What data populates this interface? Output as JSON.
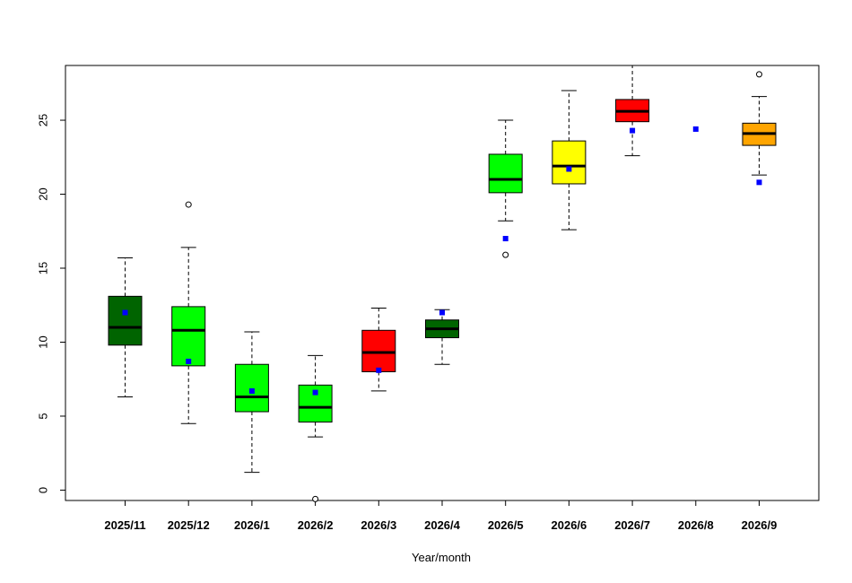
{
  "chart_data": {
    "type": "boxplot",
    "xlabel": "Year/month",
    "ylabel": "",
    "ylim": [
      -0.7,
      28.7
    ],
    "y_ticks": [
      0,
      5,
      10,
      15,
      20,
      25
    ],
    "grid": false,
    "categories": [
      "2025/11",
      "2025/12",
      "2026/1",
      "2026/2",
      "2026/3",
      "2026/4",
      "2026/5",
      "2026/6",
      "2026/7",
      "2026/8",
      "2026/9"
    ],
    "boxes": [
      {
        "category": "2025/11",
        "lower_whisker": 6.3,
        "q1": 9.8,
        "median": 11.0,
        "q3": 13.1,
        "upper_whisker": 15.7,
        "outliers": [],
        "mean": 12.0,
        "color": "#006400"
      },
      {
        "category": "2025/12",
        "lower_whisker": 4.5,
        "q1": 8.4,
        "median": 10.8,
        "q3": 12.4,
        "upper_whisker": 16.4,
        "outliers": [
          19.3
        ],
        "mean": 8.7,
        "color": "#00ff00"
      },
      {
        "category": "2026/1",
        "lower_whisker": 1.2,
        "q1": 5.3,
        "median": 6.3,
        "q3": 8.5,
        "upper_whisker": 10.7,
        "outliers": [],
        "mean": 6.7,
        "color": "#00ff00"
      },
      {
        "category": "2026/2",
        "lower_whisker": 3.6,
        "q1": 4.6,
        "median": 5.6,
        "q3": 7.1,
        "upper_whisker": 9.1,
        "outliers": [
          -0.6
        ],
        "mean": 6.6,
        "color": "#00ff00"
      },
      {
        "category": "2026/3",
        "lower_whisker": 6.7,
        "q1": 8.0,
        "median": 9.3,
        "q3": 10.8,
        "upper_whisker": 12.3,
        "outliers": [],
        "mean": 8.1,
        "color": "#ff0000"
      },
      {
        "category": "2026/4",
        "lower_whisker": 8.5,
        "q1": 10.3,
        "median": 10.9,
        "q3": 11.5,
        "upper_whisker": 12.2,
        "outliers": [],
        "mean": 12.0,
        "color": "#006400"
      },
      {
        "category": "2026/5",
        "lower_whisker": 18.2,
        "q1": 20.1,
        "median": 21.0,
        "q3": 22.7,
        "upper_whisker": 25.0,
        "outliers": [
          15.9
        ],
        "mean": 17.0,
        "color": "#00ff00"
      },
      {
        "category": "2026/6",
        "lower_whisker": 17.6,
        "q1": 20.7,
        "median": 21.9,
        "q3": 23.6,
        "upper_whisker": 27.0,
        "outliers": [],
        "mean": 21.7,
        "color": "#ffff00"
      },
      {
        "category": "2026/7",
        "lower_whisker": 22.6,
        "q1": 24.9,
        "median": 25.6,
        "q3": 26.4,
        "upper_whisker": 28.7,
        "outliers": [],
        "mean": 24.3,
        "color": "#ff0000"
      },
      {
        "category": "2026/8",
        "lower_whisker": null,
        "q1": null,
        "median": null,
        "q3": null,
        "upper_whisker": null,
        "outliers": [],
        "mean": 24.4,
        "color": "#ffffff"
      },
      {
        "category": "2026/9",
        "lower_whisker": 21.3,
        "q1": 23.3,
        "median": 24.1,
        "q3": 24.8,
        "upper_whisker": 26.6,
        "outliers": [
          28.1
        ],
        "mean": 20.8,
        "color": "#ffa500"
      }
    ],
    "mean_marker_color": "#0000ff"
  }
}
